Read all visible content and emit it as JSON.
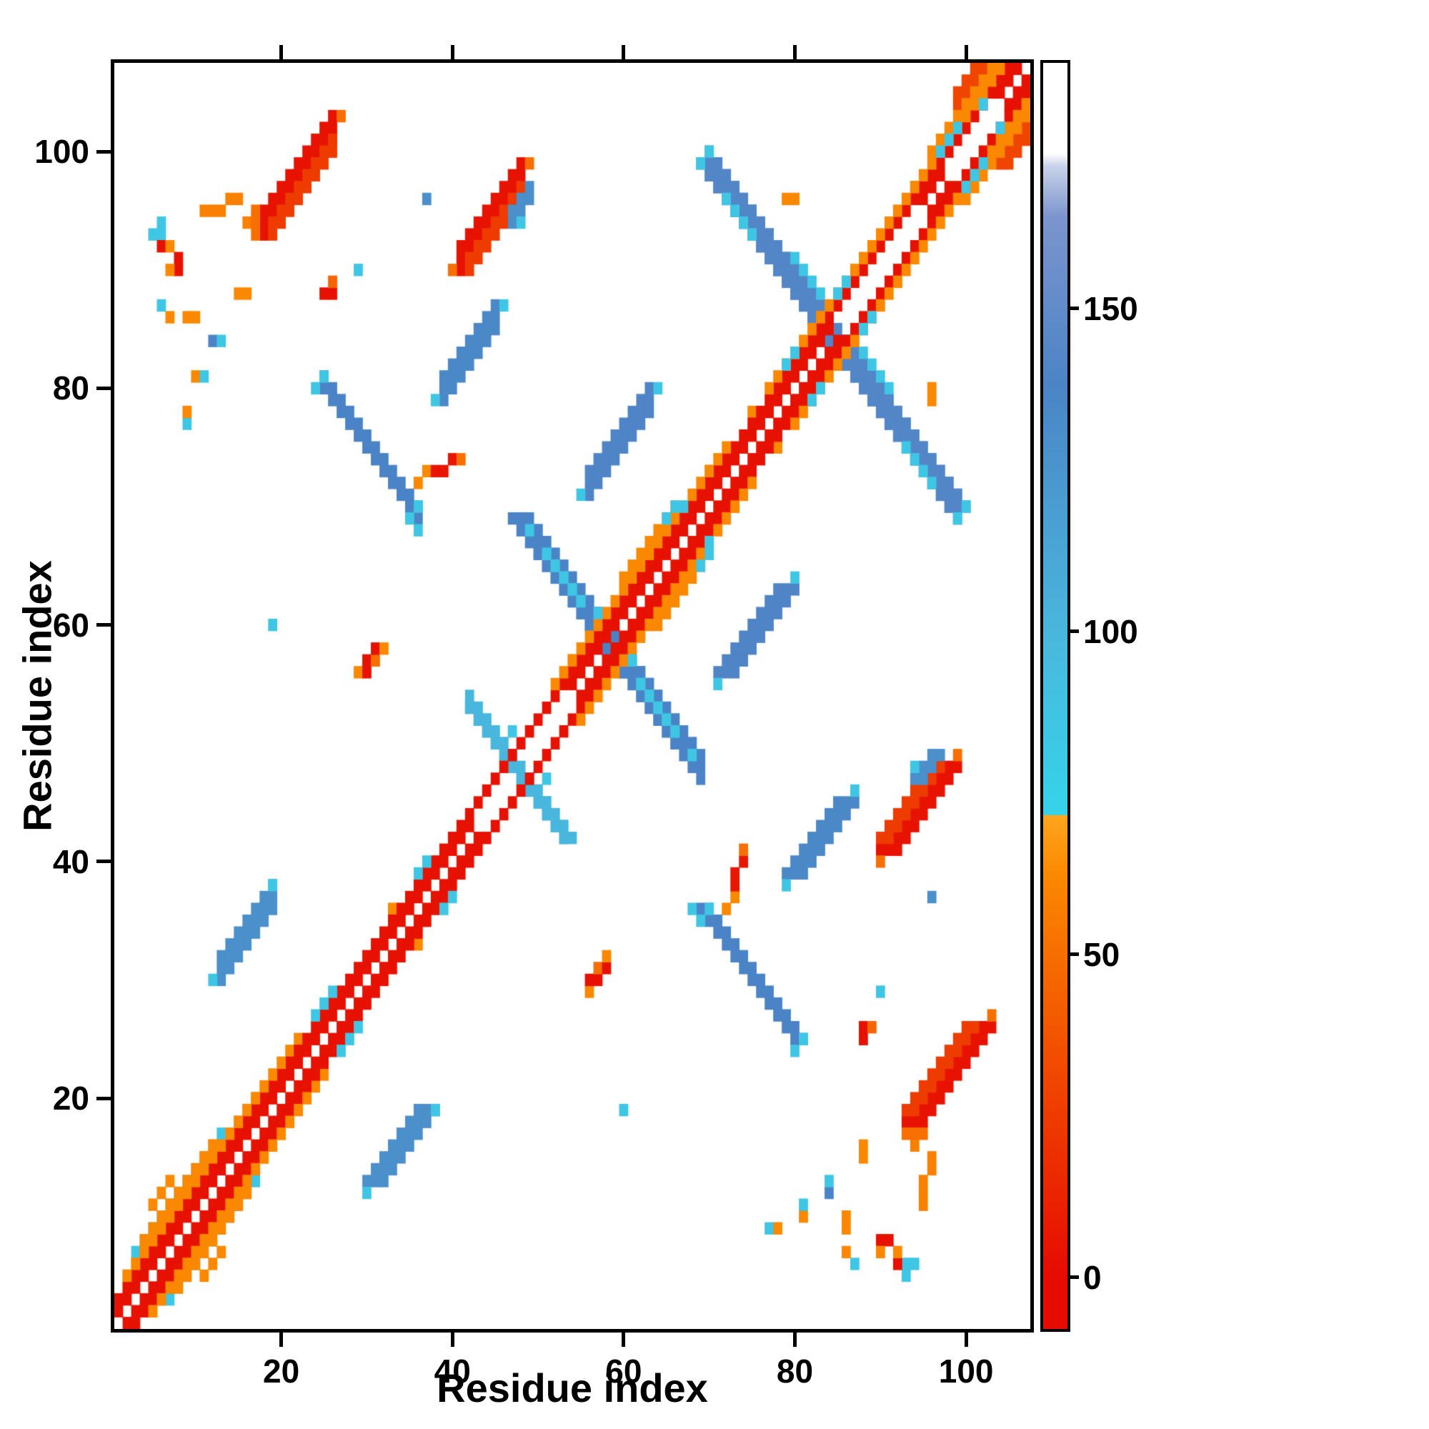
{
  "chart_data": {
    "type": "heatmap",
    "n": 107,
    "axis_range": [
      1,
      107
    ],
    "xlabel": "Residue index",
    "ylabel": "Residue index",
    "x_ticks": [
      20,
      40,
      60,
      80,
      100
    ],
    "y_ticks": [
      20,
      40,
      60,
      80,
      100
    ],
    "grid": false,
    "background": "#ffffff",
    "colorbar": {
      "ticks": [
        150,
        100,
        50,
        0
      ],
      "vmin": -8,
      "vmax": 188,
      "position": "right"
    },
    "colormap_stops": [
      [
        -8,
        "#e50b00"
      ],
      [
        0,
        "#e60b00"
      ],
      [
        34,
        "#f14d00"
      ],
      [
        62,
        "#fa8800"
      ],
      [
        71.5,
        "#ffa51f"
      ],
      [
        71.6,
        "#35d3ea"
      ],
      [
        98,
        "#49b9de"
      ],
      [
        138,
        "#4b84c6"
      ],
      [
        164,
        "#7b94cd"
      ],
      [
        172,
        "#c8d3ea"
      ],
      [
        174,
        "#ffffff"
      ],
      [
        188,
        "#ffffff"
      ]
    ],
    "diagonal": {
      "band_value": 3,
      "orange_value": 62,
      "d1_white_gaps": [
        [
          43,
          53
        ],
        [
          85,
          94
        ],
        [
          98,
          103
        ]
      ],
      "d3_orange_ranges": [
        [
          2,
          20
        ],
        [
          52,
          72
        ],
        [
          77,
          104
        ]
      ],
      "d4_orange_ranges": [
        [
          4,
          12
        ],
        [
          60,
          66
        ],
        [
          96,
          104
        ]
      ]
    },
    "runs": [
      {
        "i": 25,
        "j": 80,
        "di": 1,
        "dj": -1,
        "len": 12,
        "w": 2,
        "v": 138
      },
      {
        "i": 42,
        "j": 53,
        "di": 1,
        "dj": -1,
        "len": 12,
        "w": 2,
        "v": 100
      },
      {
        "i": 50,
        "j": 67,
        "di": 1,
        "dj": -1,
        "len": 20,
        "w": 3,
        "v": 138
      },
      {
        "i": 51,
        "j": 66,
        "di": 1,
        "dj": -1,
        "len": 5,
        "w": 1,
        "v": 85
      },
      {
        "i": 62,
        "j": 55,
        "di": 1,
        "dj": -1,
        "len": 5,
        "w": 1,
        "v": 85
      },
      {
        "i": 70,
        "j": 99,
        "di": 1,
        "dj": -1,
        "len": 30,
        "w": 3,
        "v": 142
      },
      {
        "i": 72,
        "j": 96,
        "di": 1,
        "dj": -1,
        "len": 4,
        "w": 1,
        "v": 85
      },
      {
        "i": 88,
        "j": 83,
        "di": 1,
        "dj": -1,
        "len": 4,
        "w": 1,
        "v": 85
      },
      {
        "i": 13,
        "j": 31,
        "di": 1,
        "dj": 1,
        "len": 7,
        "w": 3,
        "v": 130
      },
      {
        "i": 39,
        "j": 80,
        "di": 1,
        "dj": 1,
        "len": 7,
        "w": 3,
        "v": 135
      },
      {
        "i": 56,
        "j": 72,
        "di": 1,
        "dj": 1,
        "len": 8,
        "w": 3,
        "v": 140
      },
      {
        "i": 41,
        "j": 91,
        "di": 1,
        "dj": 1,
        "len": 8,
        "w": 3,
        "v": 4
      },
      {
        "i": 42,
        "j": 90,
        "di": 1,
        "dj": 1,
        "len": 7,
        "w": 2,
        "v": 25
      },
      {
        "i": 18,
        "j": 94,
        "di": 1,
        "dj": 1,
        "len": 9,
        "w": 3,
        "v": 4
      },
      {
        "i": 19,
        "j": 93,
        "di": 1,
        "dj": 1,
        "len": 8,
        "w": 2,
        "v": 25
      },
      {
        "i": 99,
        "j": 104,
        "di": 1,
        "dj": 1,
        "len": 4,
        "w": 2,
        "v": 30
      },
      {
        "i": 47,
        "j": 94,
        "di": 1,
        "dj": 1,
        "len": 3,
        "w": 2,
        "v": 130
      }
    ],
    "cells": [
      [
        11,
        95,
        58
      ],
      [
        12,
        95,
        58
      ],
      [
        13,
        95,
        58
      ],
      [
        14,
        96,
        58
      ],
      [
        15,
        96,
        58
      ],
      [
        16,
        94,
        58
      ],
      [
        17,
        94,
        50
      ],
      [
        17,
        95,
        50
      ],
      [
        5,
        93,
        85
      ],
      [
        6,
        93,
        85
      ],
      [
        6,
        94,
        85
      ],
      [
        6,
        92,
        3
      ],
      [
        7,
        92,
        62
      ],
      [
        8,
        90,
        3
      ],
      [
        8,
        91,
        3
      ],
      [
        7,
        90,
        62
      ],
      [
        6,
        87,
        85
      ],
      [
        7,
        86,
        62
      ],
      [
        9,
        86,
        62
      ],
      [
        10,
        86,
        62
      ],
      [
        12,
        84,
        138
      ],
      [
        13,
        84,
        85
      ],
      [
        10,
        81,
        62
      ],
      [
        11,
        81,
        85
      ],
      [
        15,
        88,
        62
      ],
      [
        16,
        88,
        62
      ],
      [
        9,
        77,
        85
      ],
      [
        9,
        78,
        62
      ],
      [
        19,
        60,
        85
      ],
      [
        37,
        96,
        130
      ],
      [
        29,
        56,
        62
      ],
      [
        30,
        56,
        3
      ],
      [
        30,
        57,
        3
      ],
      [
        31,
        57,
        50
      ],
      [
        31,
        58,
        3
      ],
      [
        32,
        58,
        62
      ],
      [
        36,
        72,
        62
      ],
      [
        37,
        73,
        62
      ],
      [
        38,
        73,
        5
      ],
      [
        39,
        73,
        5
      ],
      [
        40,
        74,
        5
      ],
      [
        41,
        74,
        50
      ],
      [
        35,
        69,
        85
      ],
      [
        36,
        70,
        85
      ],
      [
        25,
        88,
        3
      ],
      [
        26,
        88,
        3
      ],
      [
        26,
        89,
        45
      ],
      [
        29,
        90,
        85
      ],
      [
        40,
        90,
        50
      ],
      [
        49,
        99,
        50
      ],
      [
        17,
        93,
        50
      ],
      [
        27,
        103,
        50
      ],
      [
        79,
        96,
        62
      ],
      [
        80,
        96,
        62
      ],
      [
        21,
        24,
        62
      ],
      [
        22,
        25,
        62
      ],
      [
        33,
        36,
        62
      ],
      [
        54,
        57,
        62
      ],
      [
        62,
        65,
        62
      ],
      [
        70,
        73,
        62
      ],
      [
        75,
        78,
        62
      ],
      [
        83,
        86,
        62
      ],
      [
        89,
        92,
        62
      ],
      [
        94,
        97,
        62
      ],
      [
        2,
        4,
        62
      ],
      [
        2,
        5,
        62
      ],
      [
        3,
        6,
        62
      ],
      [
        3,
        7,
        85
      ],
      [
        4,
        7,
        62
      ],
      [
        4,
        8,
        85
      ],
      [
        5,
        8,
        20
      ],
      [
        5,
        9,
        85
      ],
      [
        5,
        11,
        62
      ],
      [
        6,
        9,
        62
      ],
      [
        6,
        10,
        85
      ],
      [
        7,
        10,
        62
      ],
      [
        7,
        11,
        85
      ],
      [
        8,
        11,
        40
      ],
      [
        8,
        12,
        85
      ],
      [
        9,
        12,
        62
      ],
      [
        9,
        13,
        85
      ],
      [
        10,
        13,
        62
      ],
      [
        10,
        14,
        85
      ],
      [
        11,
        14,
        62
      ],
      [
        11,
        15,
        40
      ],
      [
        12,
        15,
        62
      ],
      [
        12,
        16,
        62
      ],
      [
        13,
        16,
        40
      ],
      [
        14,
        17,
        62
      ],
      [
        15,
        17,
        20
      ],
      [
        15,
        18,
        62
      ],
      [
        16,
        18,
        40
      ],
      [
        4,
        6,
        20
      ],
      [
        6,
        12,
        62
      ],
      [
        7,
        13,
        62
      ],
      [
        3,
        5,
        20
      ],
      [
        13,
        17,
        85
      ],
      [
        16,
        19,
        62
      ],
      [
        17,
        20,
        62
      ],
      [
        18,
        20,
        40
      ]
    ],
    "cells_top": [
      [
        24,
        27,
        85
      ],
      [
        25,
        28,
        85
      ],
      [
        26,
        29,
        85
      ],
      [
        36,
        39,
        85
      ],
      [
        37,
        40,
        85
      ],
      [
        65,
        69,
        85
      ],
      [
        66,
        70,
        85
      ],
      [
        67,
        70,
        85
      ],
      [
        79,
        82,
        85
      ],
      [
        80,
        83,
        85
      ],
      [
        85,
        88,
        85
      ],
      [
        86,
        89,
        85
      ],
      [
        97,
        100,
        85
      ],
      [
        98,
        101,
        85
      ],
      [
        99,
        102,
        85
      ],
      [
        102,
        104,
        85
      ],
      [
        57,
        61,
        85
      ],
      [
        47,
        51,
        85
      ],
      [
        24,
        80,
        85
      ],
      [
        25,
        81,
        85
      ],
      [
        36,
        68,
        85
      ],
      [
        49,
        68,
        85
      ],
      [
        69,
        99,
        85
      ],
      [
        70,
        100,
        85
      ],
      [
        12,
        30,
        85
      ],
      [
        19,
        38,
        85
      ],
      [
        38,
        79,
        85
      ],
      [
        46,
        87,
        85
      ],
      [
        55,
        71,
        85
      ],
      [
        64,
        80,
        85
      ],
      [
        48,
        94,
        85
      ]
    ]
  }
}
